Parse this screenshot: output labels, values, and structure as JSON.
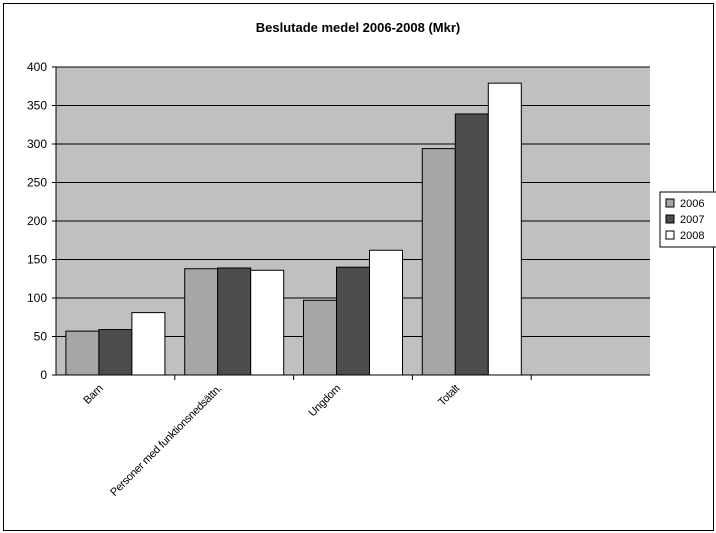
{
  "chart_data": {
    "type": "bar",
    "title": "Beslutade medel 2006-2008 (Mkr)",
    "categories": [
      "Barn",
      "Personer med funktionsnedsättn.",
      "Ungdom",
      "Totalt"
    ],
    "category_slots": 5,
    "category_positions": [
      0,
      1,
      2,
      3
    ],
    "series": [
      {
        "name": "2006",
        "values": [
          57,
          138,
          97,
          294
        ],
        "color": "#a6a6a6"
      },
      {
        "name": "2007",
        "values": [
          59,
          139,
          140,
          339
        ],
        "color": "#4d4d4d"
      },
      {
        "name": "2008",
        "values": [
          81,
          136,
          162,
          379
        ],
        "color": "#ffffff"
      }
    ],
    "ylim": [
      0,
      400
    ],
    "yticks": [
      0,
      50,
      100,
      150,
      200,
      250,
      300,
      350,
      400
    ],
    "xlabel": "",
    "ylabel": "",
    "grid": true,
    "legend_position": "right",
    "plot_background": "#c0c0c0"
  }
}
